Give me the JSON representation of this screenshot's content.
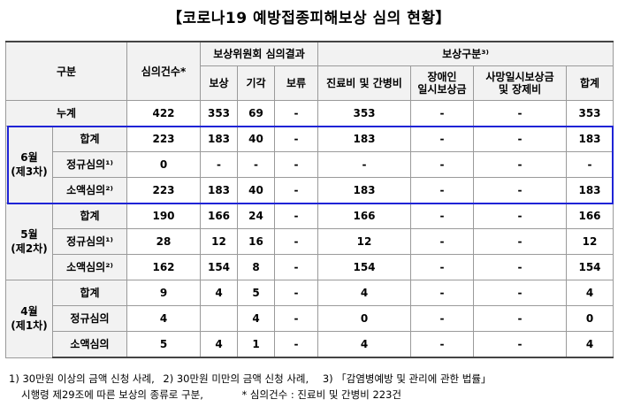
{
  "title": "【코로나19 예방접종피해보상 심의 현황】",
  "headers": {
    "category": "구분",
    "count": "심의건수*",
    "committee": "보상위원회 심의결과",
    "compensate": "보상",
    "reject": "기각",
    "hold": "보류",
    "type": "보상구분³⁾",
    "medical": "진료비 및 간병비",
    "disability": "장애인\n일시보상금",
    "death": "사망일시보상금\n및 장제비",
    "total": "합계"
  },
  "cumulative": {
    "label": "누계",
    "values": [
      "422",
      "353",
      "69",
      "-",
      "353",
      "-",
      "-",
      "353"
    ]
  },
  "groups": [
    {
      "label": "6월\n(제3차)",
      "rows": [
        {
          "label": "합계",
          "values": [
            "223",
            "183",
            "40",
            "-",
            "183",
            "-",
            "-",
            "183"
          ]
        },
        {
          "label": "정규심의¹⁾",
          "values": [
            "0",
            "-",
            "-",
            "-",
            "-",
            "-",
            "-",
            "-"
          ]
        },
        {
          "label": "소액심의²⁾",
          "values": [
            "223",
            "183",
            "40",
            "-",
            "183",
            "-",
            "-",
            "183"
          ]
        }
      ]
    },
    {
      "label": "5월\n(제2차)",
      "rows": [
        {
          "label": "합계",
          "values": [
            "190",
            "166",
            "24",
            "-",
            "166",
            "-",
            "-",
            "166"
          ]
        },
        {
          "label": "정규심의¹⁾",
          "values": [
            "28",
            "12",
            "16",
            "-",
            "12",
            "-",
            "-",
            "12"
          ]
        },
        {
          "label": "소액심의²⁾",
          "values": [
            "162",
            "154",
            "8",
            "-",
            "154",
            "-",
            "-",
            "154"
          ]
        }
      ]
    },
    {
      "label": "4월\n(제1차)",
      "rows": [
        {
          "label": "합계",
          "values": [
            "9",
            "4",
            "5",
            "-",
            "4",
            "-",
            "-",
            "4"
          ]
        },
        {
          "label": "정규심의",
          "values": [
            "4",
            "",
            "4",
            "-",
            "0",
            "-",
            "-",
            "0"
          ]
        },
        {
          "label": "소액심의",
          "values": [
            "5",
            "4",
            "1",
            "-",
            "4",
            "-",
            "-",
            "4"
          ]
        }
      ]
    }
  ],
  "footnotes": {
    "line1_a": "1) 30만원 이상의 금액 신청 사례,",
    "line1_b": "2) 30만원 미만의 금액 신청 사례,",
    "line1_c": "3) 「감염병예방 및 관리에 관한 법률」",
    "line2_a": "시행령 제29조에 따른 보상의 종류로 구분,",
    "line2_b": "* 심의건수 : 진료비 및 간병비 223건"
  }
}
